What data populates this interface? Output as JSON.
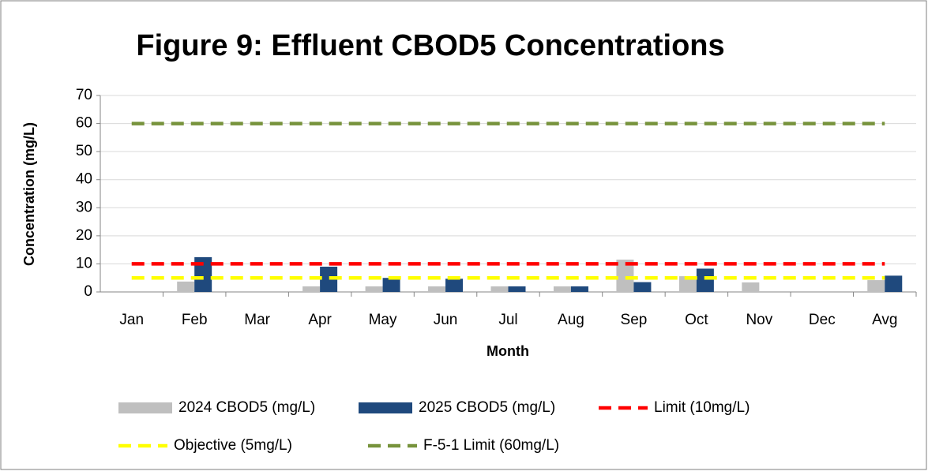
{
  "chart_data": {
    "type": "bar",
    "title": "Figure 9:  Effluent CBOD5 Concentrations",
    "x_label": "Month",
    "y_label": "Concentration (mg/L)",
    "categories": [
      "Jan",
      "Feb",
      "Mar",
      "Apr",
      "May",
      "Jun",
      "Jul",
      "Aug",
      "Sep",
      "Oct",
      "Nov",
      "Dec",
      "Avg"
    ],
    "series": [
      {
        "name": "2024 CBOD5 (mg/L)",
        "type": "bar",
        "color": "#bfbfbf",
        "values": [
          null,
          3.7,
          null,
          2,
          2,
          2,
          2,
          2,
          11.5,
          5.6,
          3.4,
          null,
          4.2
        ]
      },
      {
        "name": "2025 CBOD5 (mg/L)",
        "type": "bar",
        "color": "#1f497d",
        "values": [
          null,
          12.4,
          null,
          9,
          5,
          4.7,
          2,
          2,
          3.5,
          8.3,
          null,
          null,
          5.8
        ]
      },
      {
        "name": "Limit (10mg/L)",
        "type": "line",
        "color": "#ff0000",
        "values": [
          10,
          10,
          10,
          10,
          10,
          10,
          10,
          10,
          10,
          10,
          10,
          10,
          10
        ]
      },
      {
        "name": "Objective (5mg/L)",
        "type": "line",
        "color": "#ffff00",
        "values": [
          5,
          5,
          5,
          5,
          5,
          5,
          5,
          5,
          5,
          5,
          5,
          5,
          5
        ]
      },
      {
        "name": "F-5-1 Limit (60mg/L)",
        "type": "line",
        "color": "#77933c",
        "values": [
          60,
          60,
          60,
          60,
          60,
          60,
          60,
          60,
          60,
          60,
          60,
          60,
          60
        ]
      }
    ],
    "ylim": [
      0,
      70
    ],
    "yticks": [
      0,
      10,
      20,
      30,
      40,
      50,
      60,
      70
    ],
    "grid": true,
    "legend": "bottom"
  }
}
